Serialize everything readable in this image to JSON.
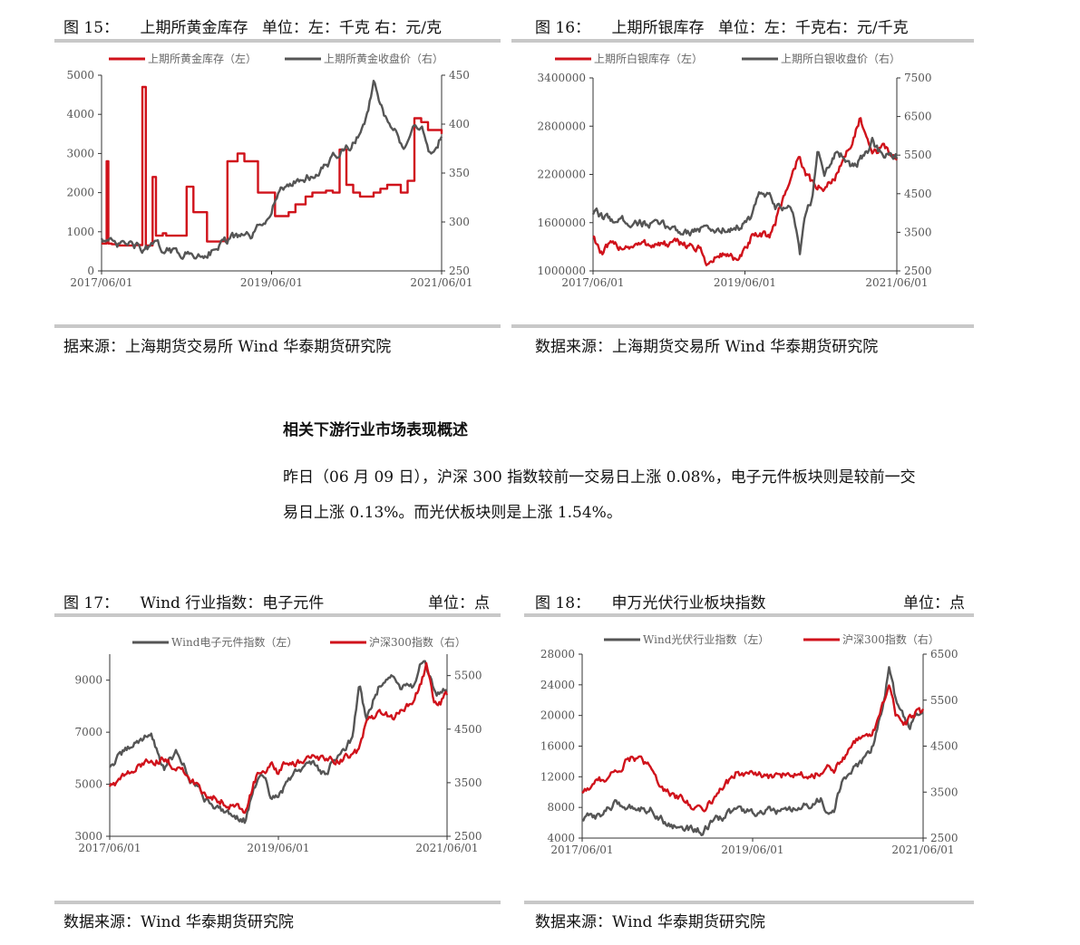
{
  "colors": {
    "red": "#d0121b",
    "gray": "#555555",
    "rule": "#c8c8c8"
  },
  "section": {
    "heading": "相关下游行业市场表现概述",
    "para_line1": "昨日（06 月 09 日），沪深 300 指数较前一交易日上涨 0.08%，电子元件板块则是较前一交",
    "para_line2": "易日上涨 0.13%。而光伏板块则是上涨 1.54%。"
  },
  "figures": {
    "fig15": {
      "num": "图 15：",
      "title": "上期所黄金库存",
      "unit": "单位：左：千克  右：元/克",
      "source": "据来源：上海期货交易所  Wind  华泰期货研究院"
    },
    "fig16": {
      "num": "图 16：",
      "title": "上期所银库存",
      "unit": "单位：左：千克右：元/千克",
      "source": "数据来源：上海期货交易所  Wind  华泰期货研究院"
    },
    "fig17": {
      "num": "图 17：",
      "title": "Wind 行业指数：电子元件",
      "unit": "单位：点",
      "source": "数据来源：Wind  华泰期货研究院"
    },
    "fig18": {
      "num": "图 18：",
      "title": "申万光伏行业板块指数",
      "unit": "单位：点",
      "source": "数据来源：Wind  华泰期货研究院"
    }
  },
  "chart_data": [
    {
      "id": "fig15",
      "type": "line",
      "x_ticks": [
        "2017/06/01",
        "2019/06/01",
        "2021/06/01"
      ],
      "left_axis": {
        "min": 0,
        "max": 5000,
        "ticks": [
          "0",
          "1000",
          "2000",
          "3000",
          "4000",
          "5000"
        ]
      },
      "right_axis": {
        "min": 250,
        "max": 450,
        "ticks": [
          "250",
          "300",
          "350",
          "400",
          "450"
        ]
      },
      "series": [
        {
          "name": "上期所黄金库存（左）",
          "axis": "left",
          "color": "#d0121b",
          "kind": "step",
          "x": [
            0,
            0.015,
            0.02,
            0.03,
            0.05,
            0.1,
            0.12,
            0.125,
            0.13,
            0.15,
            0.16,
            0.18,
            0.19,
            0.22,
            0.25,
            0.27,
            0.29,
            0.3,
            0.31,
            0.34,
            0.35,
            0.37,
            0.39,
            0.4,
            0.42,
            0.45,
            0.46,
            0.5,
            0.51,
            0.53,
            0.55,
            0.57,
            0.6,
            0.62,
            0.64,
            0.66,
            0.68,
            0.7,
            0.72,
            0.74,
            0.76,
            0.8,
            0.82,
            0.84,
            0.86,
            0.88,
            0.9,
            0.92,
            0.94,
            0.96,
            1.0
          ],
          "y": [
            700,
            2800,
            700,
            680,
            650,
            660,
            4700,
            4700,
            650,
            2400,
            900,
            960,
            900,
            900,
            2150,
            1500,
            1500,
            1500,
            750,
            750,
            760,
            2800,
            2800,
            3000,
            2800,
            2800,
            2000,
            2000,
            1400,
            1400,
            1500,
            1700,
            1900,
            2000,
            2000,
            2050,
            2000,
            3100,
            2200,
            2000,
            1900,
            2000,
            2100,
            2200,
            2200,
            2000,
            2300,
            3900,
            3800,
            3600,
            3500
          ]
        },
        {
          "name": "上期所黄金收盘价（右）",
          "axis": "right",
          "color": "#555555",
          "kind": "noisy",
          "x": [
            0,
            0.04,
            0.08,
            0.12,
            0.16,
            0.2,
            0.24,
            0.28,
            0.32,
            0.36,
            0.4,
            0.44,
            0.48,
            0.52,
            0.56,
            0.6,
            0.64,
            0.68,
            0.7,
            0.72,
            0.74,
            0.76,
            0.78,
            0.8,
            0.82,
            0.84,
            0.86,
            0.88,
            0.9,
            0.92,
            0.94,
            0.96,
            0.98,
            1.0
          ],
          "y": [
            285,
            275,
            278,
            272,
            276,
            270,
            268,
            265,
            270,
            280,
            285,
            285,
            300,
            330,
            340,
            345,
            350,
            365,
            370,
            375,
            380,
            390,
            410,
            440,
            420,
            400,
            395,
            375,
            380,
            395,
            400,
            375,
            370,
            390
          ]
        }
      ]
    },
    {
      "id": "fig16",
      "type": "line",
      "x_ticks": [
        "2017/06/01",
        "2019/06/01",
        "2021/06/01"
      ],
      "left_axis": {
        "min": 1000000,
        "max": 3400000,
        "ticks": [
          "1000000",
          "1600000",
          "2200000",
          "2800000",
          "3400000"
        ]
      },
      "right_axis": {
        "min": 2500,
        "max": 7500,
        "ticks": [
          "2500",
          "3500",
          "4500",
          "5500",
          "6500",
          "7500"
        ]
      },
      "series": [
        {
          "name": "上期所白银库存（左）",
          "axis": "left",
          "color": "#d0121b",
          "kind": "noisy",
          "x": [
            0,
            0.03,
            0.05,
            0.1,
            0.15,
            0.2,
            0.25,
            0.3,
            0.35,
            0.38,
            0.42,
            0.45,
            0.48,
            0.5,
            0.52,
            0.55,
            0.58,
            0.6,
            0.62,
            0.64,
            0.66,
            0.68,
            0.7,
            0.72,
            0.74,
            0.76,
            0.8,
            0.84,
            0.86,
            0.88,
            0.9,
            0.92,
            0.94,
            0.96,
            0.98,
            1.0
          ],
          "y": [
            1450000,
            1200000,
            1300000,
            1310000,
            1320000,
            1340000,
            1320000,
            1350000,
            1260000,
            1080000,
            1200000,
            1210000,
            1100000,
            1250000,
            1400000,
            1420000,
            1450000,
            1600000,
            1850000,
            2050000,
            2250000,
            2450000,
            2200000,
            2100000,
            2050000,
            2000000,
            2200000,
            2500000,
            2700000,
            2900000,
            2600000,
            2450000,
            2500000,
            2550000,
            2450000,
            2400000
          ]
        },
        {
          "name": "上期所白银收盘价（右）",
          "axis": "right",
          "color": "#555555",
          "kind": "noisy",
          "x": [
            0,
            0.05,
            0.1,
            0.15,
            0.2,
            0.25,
            0.3,
            0.35,
            0.4,
            0.45,
            0.5,
            0.52,
            0.55,
            0.58,
            0.6,
            0.64,
            0.66,
            0.68,
            0.7,
            0.72,
            0.74,
            0.76,
            0.8,
            0.82,
            0.84,
            0.86,
            0.88,
            0.9,
            0.92,
            0.94,
            0.96,
            0.98,
            1.0
          ],
          "y": [
            4000,
            3850,
            3800,
            3750,
            3700,
            3650,
            3500,
            3600,
            3550,
            3600,
            3700,
            3900,
            4500,
            4400,
            4100,
            4200,
            4000,
            2900,
            4000,
            4300,
            5800,
            5000,
            5600,
            5500,
            5200,
            5200,
            5400,
            5500,
            5900,
            5600,
            5400,
            5500,
            5400
          ]
        }
      ]
    },
    {
      "id": "fig17",
      "type": "line",
      "x_ticks": [
        "2017/06/01",
        "2019/06/01",
        "2021/06/01"
      ],
      "left_axis": {
        "min": 3000,
        "max": 10000,
        "ticks": [
          "3000",
          "5000",
          "7000",
          "9000"
        ]
      },
      "right_axis": {
        "min": 2500,
        "max": 5900,
        "ticks": [
          "2500",
          "3500",
          "4500",
          "5500"
        ]
      },
      "series": [
        {
          "name": "Wind电子元件指数（左）",
          "axis": "left",
          "color": "#555555",
          "kind": "noisy",
          "x": [
            0,
            0.04,
            0.08,
            0.12,
            0.16,
            0.2,
            0.24,
            0.28,
            0.32,
            0.36,
            0.4,
            0.44,
            0.46,
            0.48,
            0.5,
            0.52,
            0.56,
            0.6,
            0.64,
            0.68,
            0.72,
            0.74,
            0.76,
            0.78,
            0.8,
            0.82,
            0.84,
            0.86,
            0.88,
            0.9,
            0.92,
            0.94,
            0.96,
            0.98,
            1.0
          ],
          "y": [
            5700,
            6200,
            6600,
            7000,
            5600,
            6200,
            5200,
            4500,
            4100,
            3900,
            3600,
            5300,
            5100,
            4400,
            4500,
            4900,
            5600,
            5800,
            5400,
            6200,
            6800,
            8800,
            7500,
            8200,
            8800,
            9200,
            9100,
            8700,
            9000,
            8700,
            9700,
            9500,
            8600,
            8400,
            8700
          ]
        },
        {
          "name": "沪深300指数（右）",
          "axis": "right",
          "color": "#d0121b",
          "kind": "noisy",
          "x": [
            0,
            0.04,
            0.08,
            0.12,
            0.16,
            0.2,
            0.24,
            0.28,
            0.32,
            0.36,
            0.4,
            0.44,
            0.46,
            0.48,
            0.5,
            0.52,
            0.56,
            0.6,
            0.64,
            0.68,
            0.72,
            0.74,
            0.76,
            0.8,
            0.84,
            0.88,
            0.9,
            0.92,
            0.94,
            0.96,
            0.98,
            1.0
          ],
          "y": [
            3450,
            3600,
            3750,
            3950,
            3900,
            3800,
            3550,
            3300,
            3200,
            3100,
            3000,
            3700,
            3700,
            3800,
            3650,
            3850,
            3900,
            3950,
            3900,
            3950,
            4000,
            4100,
            4600,
            4800,
            4700,
            4950,
            5000,
            5300,
            5700,
            5050,
            5000,
            5150
          ]
        }
      ]
    },
    {
      "id": "fig18",
      "type": "line",
      "x_ticks": [
        "2017/06/01",
        "2019/06/01",
        "2021/06/01"
      ],
      "left_axis": {
        "min": 4000,
        "max": 28000,
        "ticks": [
          "4000",
          "8000",
          "12000",
          "16000",
          "20000",
          "24000",
          "28000"
        ]
      },
      "right_axis": {
        "min": 2500,
        "max": 6500,
        "ticks": [
          "2500",
          "3500",
          "4500",
          "5500",
          "6500"
        ]
      },
      "series": [
        {
          "name": "Wind光伏行业指数（左）",
          "axis": "left",
          "color": "#555555",
          "kind": "noisy",
          "x": [
            0,
            0.05,
            0.1,
            0.15,
            0.2,
            0.25,
            0.3,
            0.35,
            0.4,
            0.45,
            0.5,
            0.55,
            0.6,
            0.65,
            0.7,
            0.72,
            0.74,
            0.76,
            0.8,
            0.84,
            0.86,
            0.88,
            0.9,
            0.92,
            0.94,
            0.96,
            0.98,
            1.0
          ],
          "y": [
            6500,
            7000,
            8500,
            8000,
            7800,
            5800,
            5300,
            5000,
            6400,
            7800,
            7200,
            7500,
            7300,
            8000,
            9000,
            7500,
            8000,
            11000,
            13000,
            15000,
            17000,
            21000,
            26000,
            22000,
            20000,
            18500,
            20000,
            21000
          ]
        },
        {
          "name": "沪深300指数（右）",
          "axis": "right",
          "color": "#d0121b",
          "kind": "noisy",
          "x": [
            0,
            0.05,
            0.1,
            0.15,
            0.2,
            0.25,
            0.3,
            0.35,
            0.4,
            0.45,
            0.5,
            0.55,
            0.6,
            0.65,
            0.7,
            0.72,
            0.74,
            0.76,
            0.8,
            0.84,
            0.86,
            0.88,
            0.9,
            0.92,
            0.94,
            0.96,
            0.98,
            1.0
          ],
          "y": [
            3500,
            3750,
            3950,
            4300,
            4000,
            3500,
            3300,
            3100,
            3500,
            3900,
            3900,
            3800,
            3900,
            3900,
            3900,
            4100,
            4000,
            4150,
            4600,
            4700,
            4900,
            5400,
            5800,
            5200,
            4950,
            5100,
            5250,
            5250
          ]
        }
      ]
    }
  ]
}
